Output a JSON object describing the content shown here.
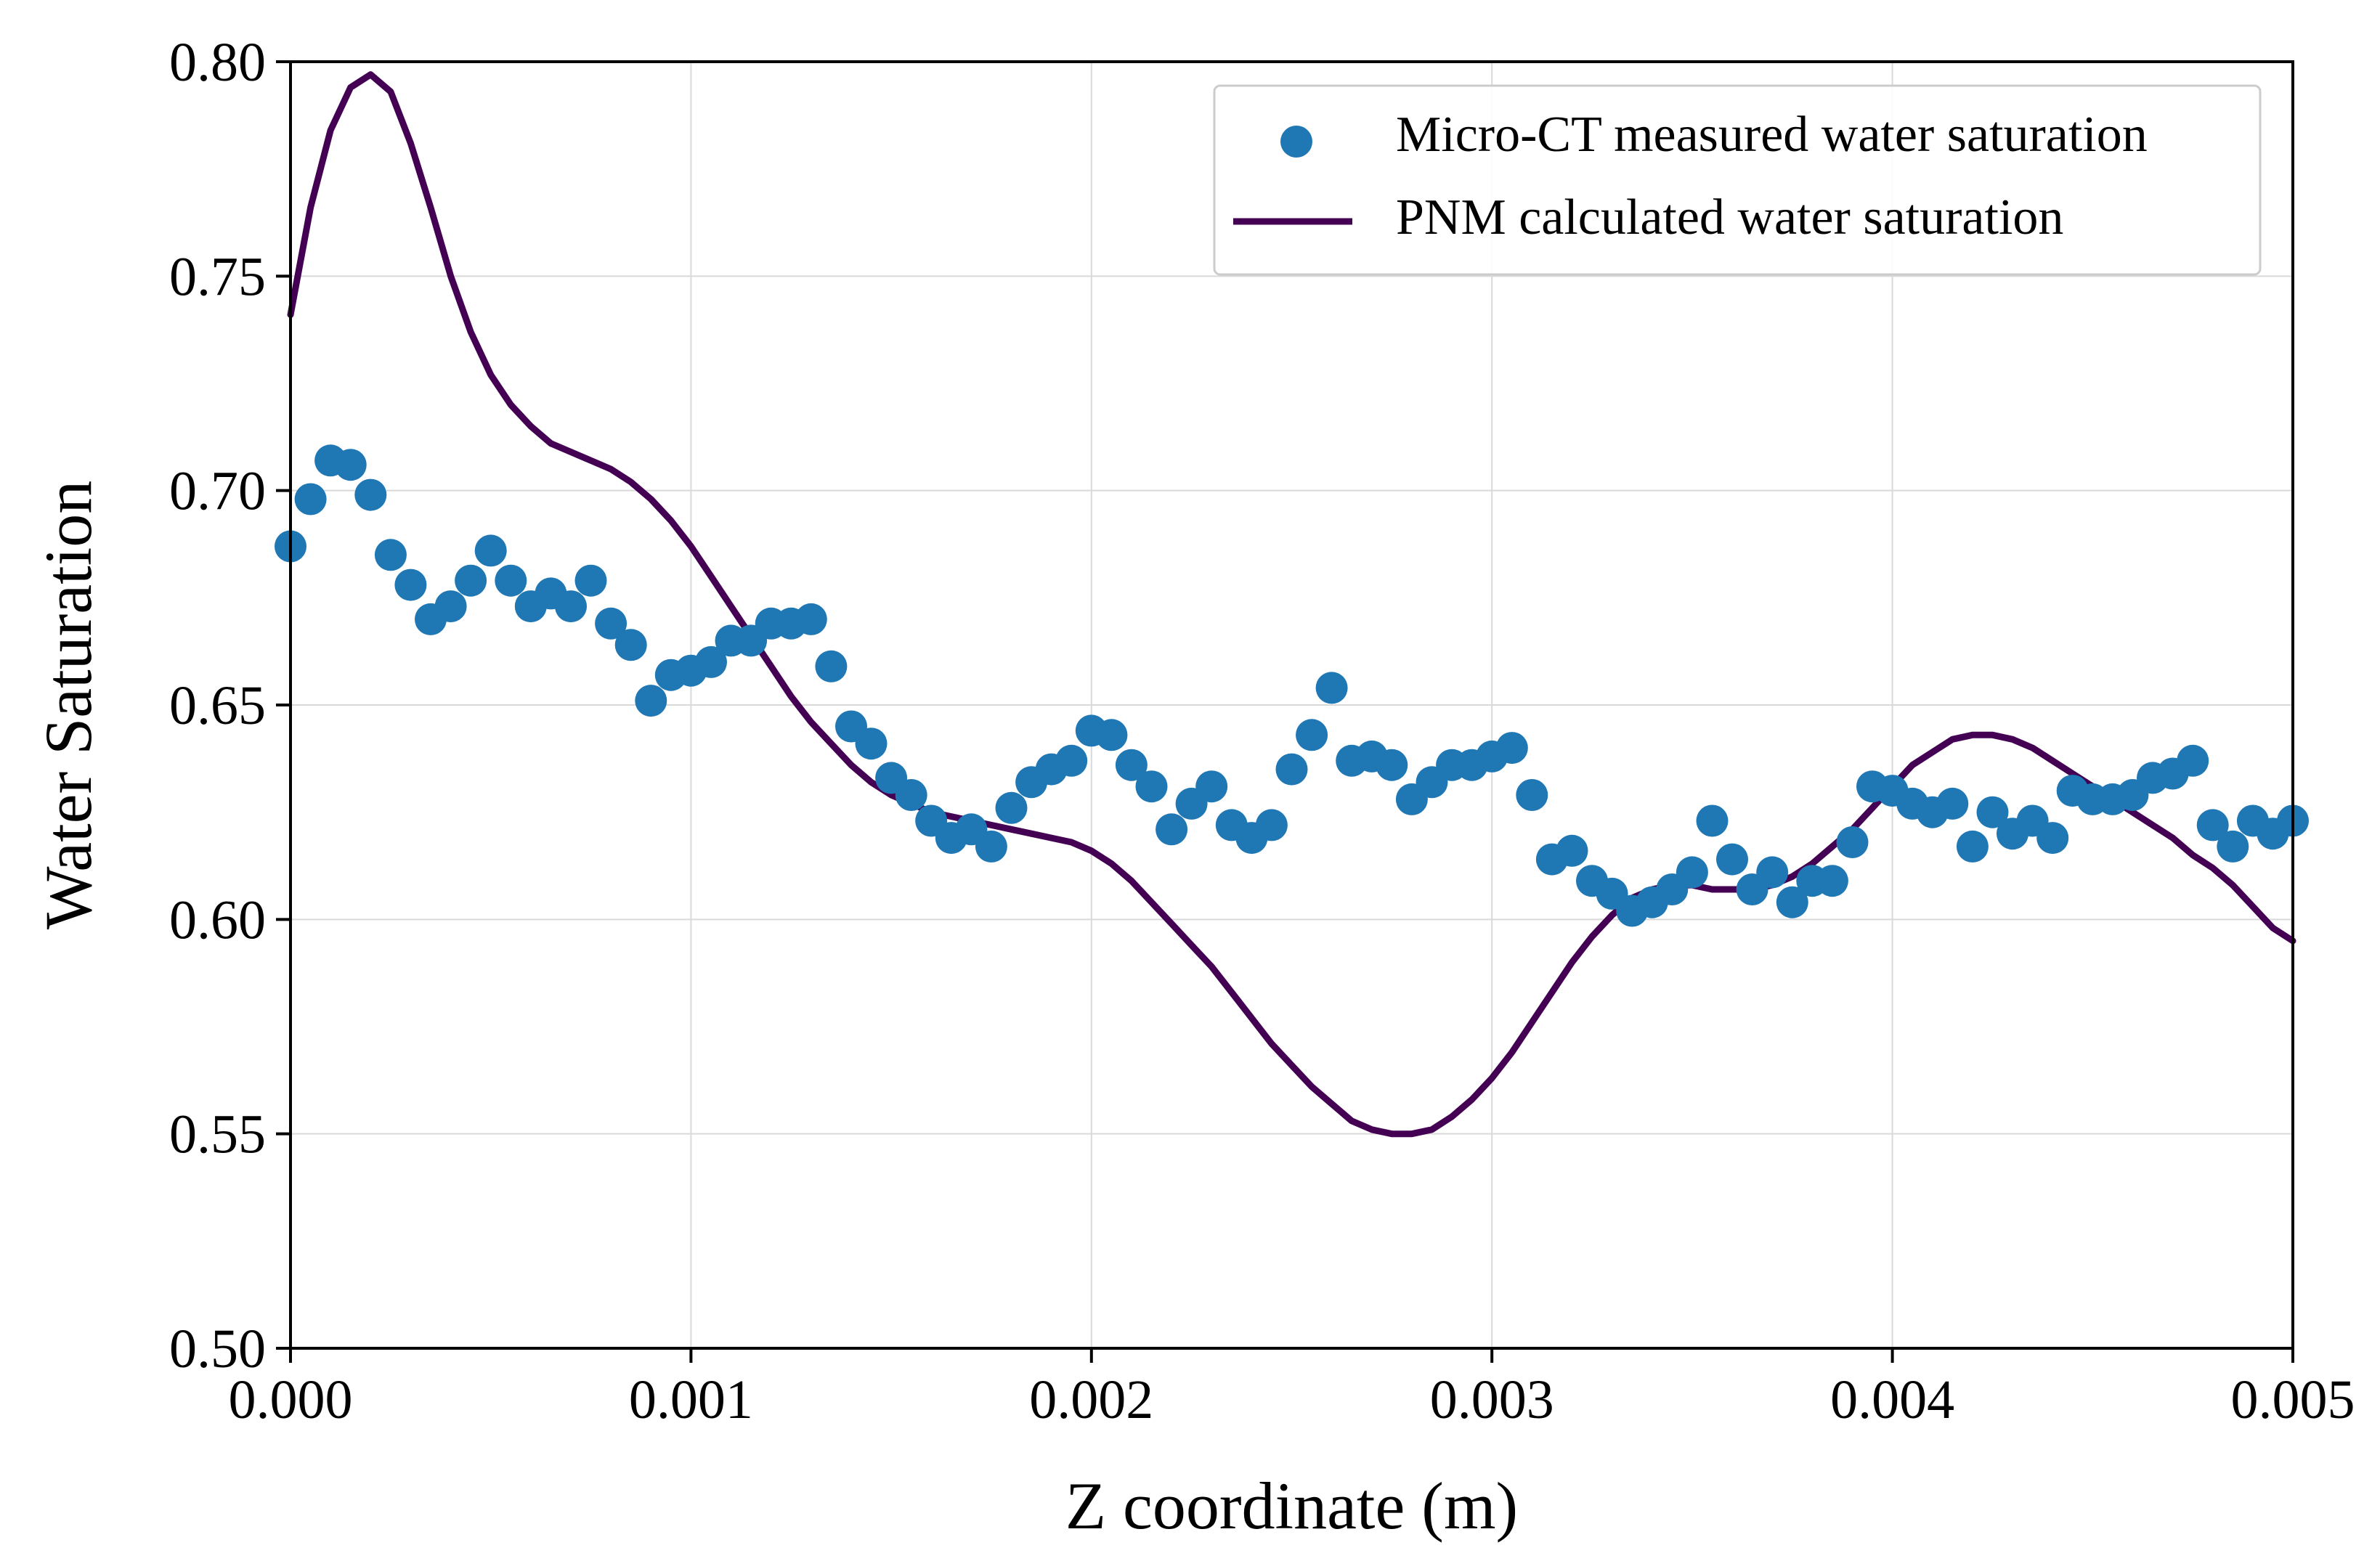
{
  "chart_data": {
    "type": "scatter",
    "title": "",
    "xlabel": "Z coordinate (m)",
    "ylabel": "Water Saturation",
    "xlim": [
      0.0,
      0.005
    ],
    "ylim": [
      0.5,
      0.8
    ],
    "xticks": [
      0.0,
      0.001,
      0.002,
      0.003,
      0.004,
      0.005
    ],
    "xtick_labels": [
      "0.000",
      "0.001",
      "0.002",
      "0.003",
      "0.004",
      "0.005"
    ],
    "yticks": [
      0.5,
      0.55,
      0.6,
      0.65,
      0.7,
      0.75,
      0.8
    ],
    "ytick_labels": [
      "0.50",
      "0.55",
      "0.60",
      "0.65",
      "0.70",
      "0.75",
      "0.80"
    ],
    "grid": true,
    "legend": "top-right",
    "series": [
      {
        "name": "Micro-CT measured water saturation",
        "kind": "scatter",
        "color": "#1f77b4",
        "x": [
          0.0,
          5e-05,
          0.0001,
          0.00015,
          0.0002,
          0.00025,
          0.0003,
          0.00035,
          0.0004,
          0.00045,
          0.0005,
          0.00055,
          0.0006,
          0.00065,
          0.0007,
          0.00075,
          0.0008,
          0.00085,
          0.0009,
          0.00095,
          0.001,
          0.00105,
          0.0011,
          0.00115,
          0.0012,
          0.00125,
          0.0013,
          0.00135,
          0.0014,
          0.00145,
          0.0015,
          0.00155,
          0.0016,
          0.00165,
          0.0017,
          0.00175,
          0.0018,
          0.00185,
          0.0019,
          0.00195,
          0.002,
          0.00205,
          0.0021,
          0.00215,
          0.0022,
          0.00225,
          0.0023,
          0.00235,
          0.0024,
          0.00245,
          0.0025,
          0.00255,
          0.0026,
          0.00265,
          0.0027,
          0.00275,
          0.0028,
          0.00285,
          0.0029,
          0.00295,
          0.003,
          0.00305,
          0.0031,
          0.00315,
          0.0032,
          0.00325,
          0.0033,
          0.00335,
          0.0034,
          0.00345,
          0.0035,
          0.00355,
          0.0036,
          0.00365,
          0.0037,
          0.00375,
          0.0038,
          0.00385,
          0.0039,
          0.00395,
          0.004,
          0.00405,
          0.0041,
          0.00415,
          0.0042,
          0.00425,
          0.0043,
          0.00435,
          0.0044,
          0.00445,
          0.0045,
          0.00455,
          0.0046,
          0.00465,
          0.0047,
          0.00475,
          0.0048,
          0.00485,
          0.0049,
          0.00495,
          0.005
        ],
        "y": [
          0.687,
          0.698,
          0.707,
          0.706,
          0.699,
          0.685,
          0.678,
          0.67,
          0.673,
          0.679,
          0.686,
          0.679,
          0.673,
          0.676,
          0.673,
          0.679,
          0.669,
          0.664,
          0.651,
          0.657,
          0.658,
          0.66,
          0.665,
          0.665,
          0.669,
          0.669,
          0.67,
          0.659,
          0.645,
          0.641,
          0.633,
          0.629,
          0.623,
          0.619,
          0.621,
          0.617,
          0.626,
          0.632,
          0.635,
          0.637,
          0.644,
          0.643,
          0.636,
          0.631,
          0.621,
          0.627,
          0.631,
          0.622,
          0.619,
          0.622,
          0.635,
          0.643,
          0.654,
          0.637,
          0.638,
          0.636,
          0.628,
          0.632,
          0.636,
          0.636,
          0.638,
          0.64,
          0.629,
          0.614,
          0.616,
          0.609,
          0.606,
          0.602,
          0.604,
          0.607,
          0.611,
          0.623,
          0.614,
          0.607,
          0.611,
          0.604,
          0.609,
          0.609,
          0.618,
          0.631,
          0.63,
          0.627,
          0.625,
          0.627,
          0.617,
          0.625,
          0.62,
          0.623,
          0.619,
          0.63,
          0.628,
          0.628,
          0.629,
          0.633,
          0.634,
          0.637,
          0.622,
          0.617,
          0.623,
          0.62,
          0.623
        ]
      },
      {
        "name": "PNM calculated water saturation",
        "kind": "line",
        "color": "#440154",
        "x": [
          0.0,
          5e-05,
          0.0001,
          0.00015,
          0.0002,
          0.00025,
          0.0003,
          0.00035,
          0.0004,
          0.00045,
          0.0005,
          0.00055,
          0.0006,
          0.00065,
          0.0007,
          0.00075,
          0.0008,
          0.00085,
          0.0009,
          0.00095,
          0.001,
          0.00105,
          0.0011,
          0.00115,
          0.0012,
          0.00125,
          0.0013,
          0.00135,
          0.0014,
          0.00145,
          0.0015,
          0.00155,
          0.0016,
          0.00165,
          0.0017,
          0.00175,
          0.0018,
          0.00185,
          0.0019,
          0.00195,
          0.002,
          0.00205,
          0.0021,
          0.00215,
          0.0022,
          0.00225,
          0.0023,
          0.00235,
          0.0024,
          0.00245,
          0.0025,
          0.00255,
          0.0026,
          0.00265,
          0.0027,
          0.00275,
          0.0028,
          0.00285,
          0.0029,
          0.00295,
          0.003,
          0.00305,
          0.0031,
          0.00315,
          0.0032,
          0.00325,
          0.0033,
          0.00335,
          0.0034,
          0.00345,
          0.0035,
          0.00355,
          0.0036,
          0.00365,
          0.0037,
          0.00375,
          0.0038,
          0.00385,
          0.0039,
          0.00395,
          0.004,
          0.00405,
          0.0041,
          0.00415,
          0.0042,
          0.00425,
          0.0043,
          0.00435,
          0.0044,
          0.00445,
          0.0045,
          0.00455,
          0.0046,
          0.00465,
          0.0047,
          0.00475,
          0.0048,
          0.00485,
          0.0049,
          0.00495,
          0.005
        ],
        "y": [
          0.741,
          0.766,
          0.784,
          0.794,
          0.797,
          0.793,
          0.781,
          0.766,
          0.75,
          0.737,
          0.727,
          0.72,
          0.715,
          0.711,
          0.709,
          0.707,
          0.705,
          0.702,
          0.698,
          0.693,
          0.687,
          0.68,
          0.673,
          0.666,
          0.659,
          0.652,
          0.646,
          0.641,
          0.636,
          0.632,
          0.629,
          0.627,
          0.625,
          0.624,
          0.623,
          0.622,
          0.621,
          0.62,
          0.619,
          0.618,
          0.616,
          0.613,
          0.609,
          0.604,
          0.599,
          0.594,
          0.589,
          0.583,
          0.577,
          0.571,
          0.566,
          0.561,
          0.557,
          0.553,
          0.551,
          0.55,
          0.55,
          0.551,
          0.554,
          0.558,
          0.563,
          0.569,
          0.576,
          0.583,
          0.59,
          0.596,
          0.601,
          0.605,
          0.607,
          0.608,
          0.608,
          0.607,
          0.607,
          0.607,
          0.608,
          0.61,
          0.613,
          0.617,
          0.621,
          0.626,
          0.631,
          0.636,
          0.639,
          0.642,
          0.643,
          0.643,
          0.642,
          0.64,
          0.637,
          0.634,
          0.631,
          0.628,
          0.625,
          0.622,
          0.619,
          0.615,
          0.612,
          0.608,
          0.603,
          0.598,
          0.595
        ]
      }
    ]
  }
}
